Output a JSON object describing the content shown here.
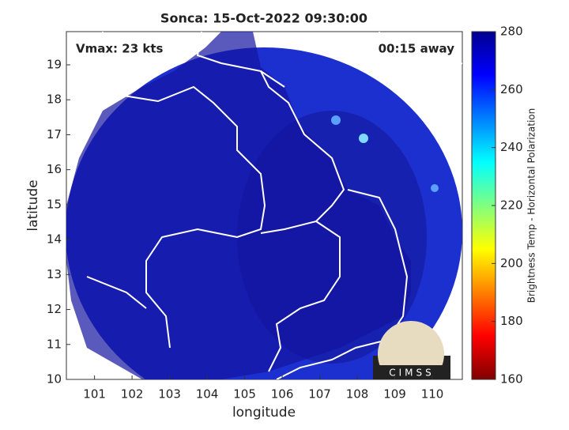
{
  "title": "Sonca: 15-Oct-2022 09:30:00",
  "annotations": {
    "left": "Vmax: 23 kts",
    "right": "00:15 away"
  },
  "x_axis": {
    "label": "longitude",
    "lim": [
      100.25,
      110.8
    ],
    "ticks": [
      101,
      102,
      103,
      104,
      105,
      106,
      107,
      108,
      109,
      110
    ]
  },
  "y_axis": {
    "label": "latitude",
    "lim": [
      10,
      19.95
    ],
    "ticks": [
      10,
      11,
      12,
      13,
      14,
      15,
      16,
      17,
      18,
      19
    ]
  },
  "colorbar": {
    "label": "Brightness Temp - Horizontal Polarization",
    "lim": [
      160,
      280
    ],
    "ticks": [
      160,
      180,
      200,
      220,
      240,
      260,
      280
    ],
    "colors": [
      "#800000",
      "#ff0000",
      "#ff8000",
      "#ffff00",
      "#80ff80",
      "#00ffff",
      "#0080ff",
      "#0000ff",
      "#00008f"
    ]
  },
  "logo": "CIMSS"
}
